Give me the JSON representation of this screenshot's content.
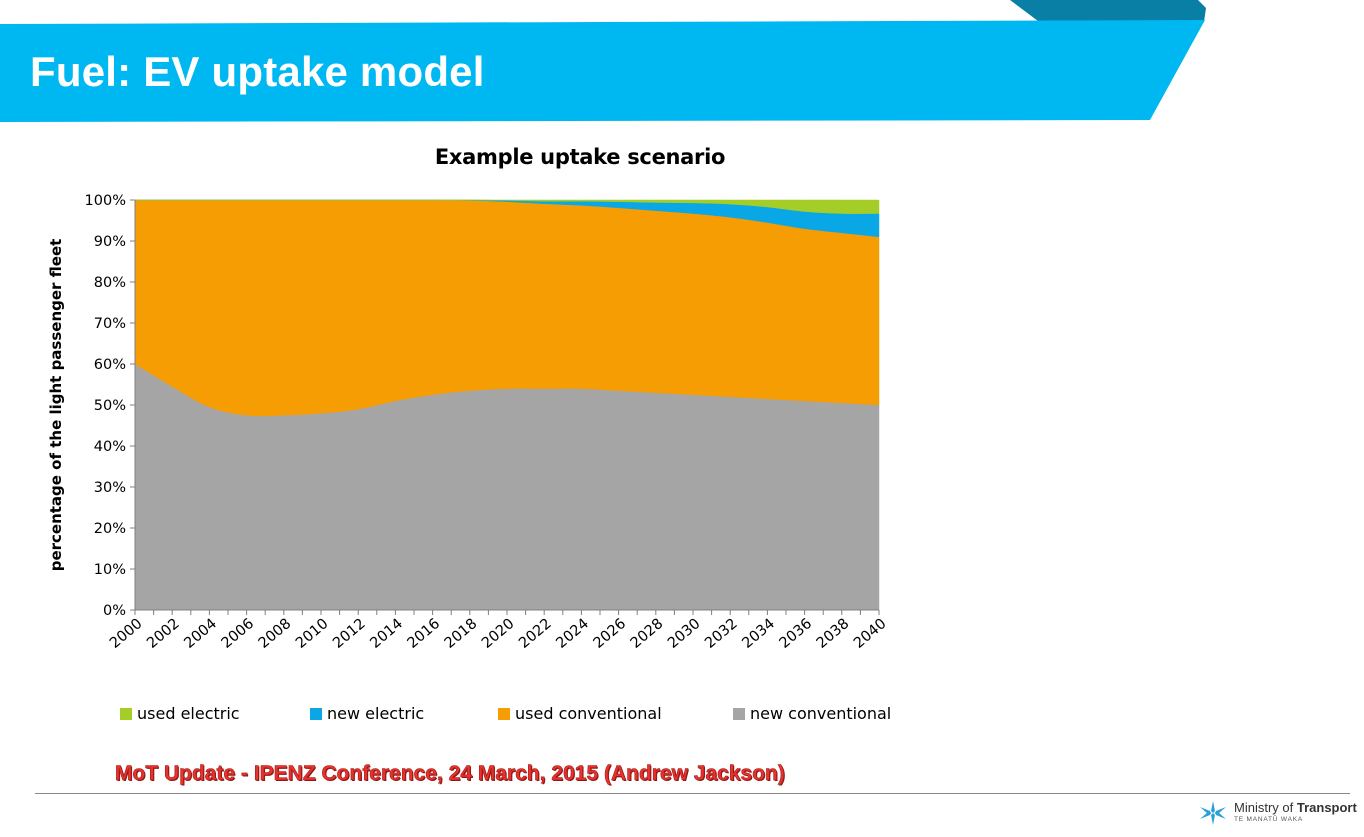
{
  "slide": {
    "title": "Fuel: EV uptake model",
    "footer": "MoT Update - IPENZ Conference, 24 March, 2015 (Andrew Jackson)",
    "logo": {
      "name_prefix": "Ministry of",
      "name_bold": "Transport",
      "sub": "TE MANATŪ WAKA",
      "icon": "koru-star-icon"
    },
    "colors": {
      "banner": "#00b8f1",
      "banner_dark": "#0a7fa6",
      "footer_text": "#e8322d"
    }
  },
  "chart_data": {
    "type": "area",
    "stacked": true,
    "percent": true,
    "title": "Example uptake scenario",
    "xlabel": "",
    "ylabel": "percentage of the light passenger fleet",
    "ylim": [
      0,
      100
    ],
    "yticks": [
      "0%",
      "10%",
      "20%",
      "30%",
      "40%",
      "50%",
      "60%",
      "70%",
      "80%",
      "90%",
      "100%"
    ],
    "xlim": [
      2000,
      2040
    ],
    "xtick_labels": [
      "2000",
      "2002",
      "2004",
      "2006",
      "2008",
      "2010",
      "2012",
      "2014",
      "2016",
      "2018",
      "2020",
      "2022",
      "2024",
      "2026",
      "2028",
      "2030",
      "2032",
      "2034",
      "2036",
      "2038",
      "2040"
    ],
    "grid": false,
    "legend_position": "bottom",
    "x": [
      2000,
      2002,
      2004,
      2006,
      2008,
      2010,
      2012,
      2014,
      2016,
      2018,
      2020,
      2022,
      2024,
      2026,
      2028,
      2030,
      2032,
      2034,
      2036,
      2038,
      2040
    ],
    "series": [
      {
        "name": "new conventional",
        "color": "#a5a5a5",
        "values": [
          60,
          54.5,
          49.5,
          47.5,
          47.5,
          48,
          49,
          51,
          52.5,
          53.5,
          54,
          54,
          54,
          53.5,
          53,
          52.5,
          52,
          51.5,
          51,
          50.5,
          50
        ]
      },
      {
        "name": "used conventional",
        "color": "#f59d03",
        "values": [
          40,
          45.5,
          50.5,
          52.5,
          52.5,
          52,
          51,
          49,
          47.5,
          46.4,
          45.6,
          45.1,
          44.7,
          44.6,
          44.4,
          44.2,
          43.8,
          43,
          42,
          41.5,
          41
        ]
      },
      {
        "name": "new electric",
        "color": "#0aa7e6",
        "values": [
          0,
          0,
          0,
          0,
          0,
          0,
          0,
          0,
          0,
          0.1,
          0.3,
          0.6,
          1,
          1.5,
          2,
          2.6,
          3.2,
          3.8,
          4.2,
          4.7,
          5.7
        ]
      },
      {
        "name": "used electric",
        "color": "#a5cd27",
        "values": [
          0,
          0,
          0,
          0,
          0,
          0,
          0,
          0,
          0,
          0,
          0.1,
          0.3,
          0.3,
          0.4,
          0.6,
          0.7,
          1,
          1.7,
          2.8,
          3.3,
          3.3
        ]
      }
    ],
    "legend_order": [
      "used electric",
      "new electric",
      "used conventional",
      "new conventional"
    ]
  }
}
